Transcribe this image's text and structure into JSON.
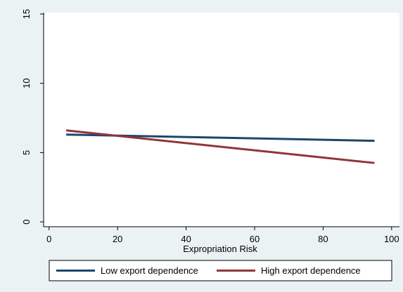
{
  "chart_data": {
    "type": "line",
    "x_label": "Expropriation Risk",
    "x": [
      5,
      95
    ],
    "series": [
      {
        "name": "Low export dependence",
        "color": "#1a476f",
        "values": [
          6.3,
          5.85
        ]
      },
      {
        "name": "High export dependence",
        "color": "#90353b",
        "values": [
          6.6,
          4.25
        ]
      }
    ],
    "xlim": [
      -1.6,
      102.3
    ],
    "ylim": [
      -0.35,
      15.1
    ],
    "xticks": [
      0,
      20,
      40,
      60,
      80,
      100
    ],
    "yticks": [
      0,
      5,
      10,
      15
    ],
    "grid": false,
    "legend": "bottom"
  }
}
